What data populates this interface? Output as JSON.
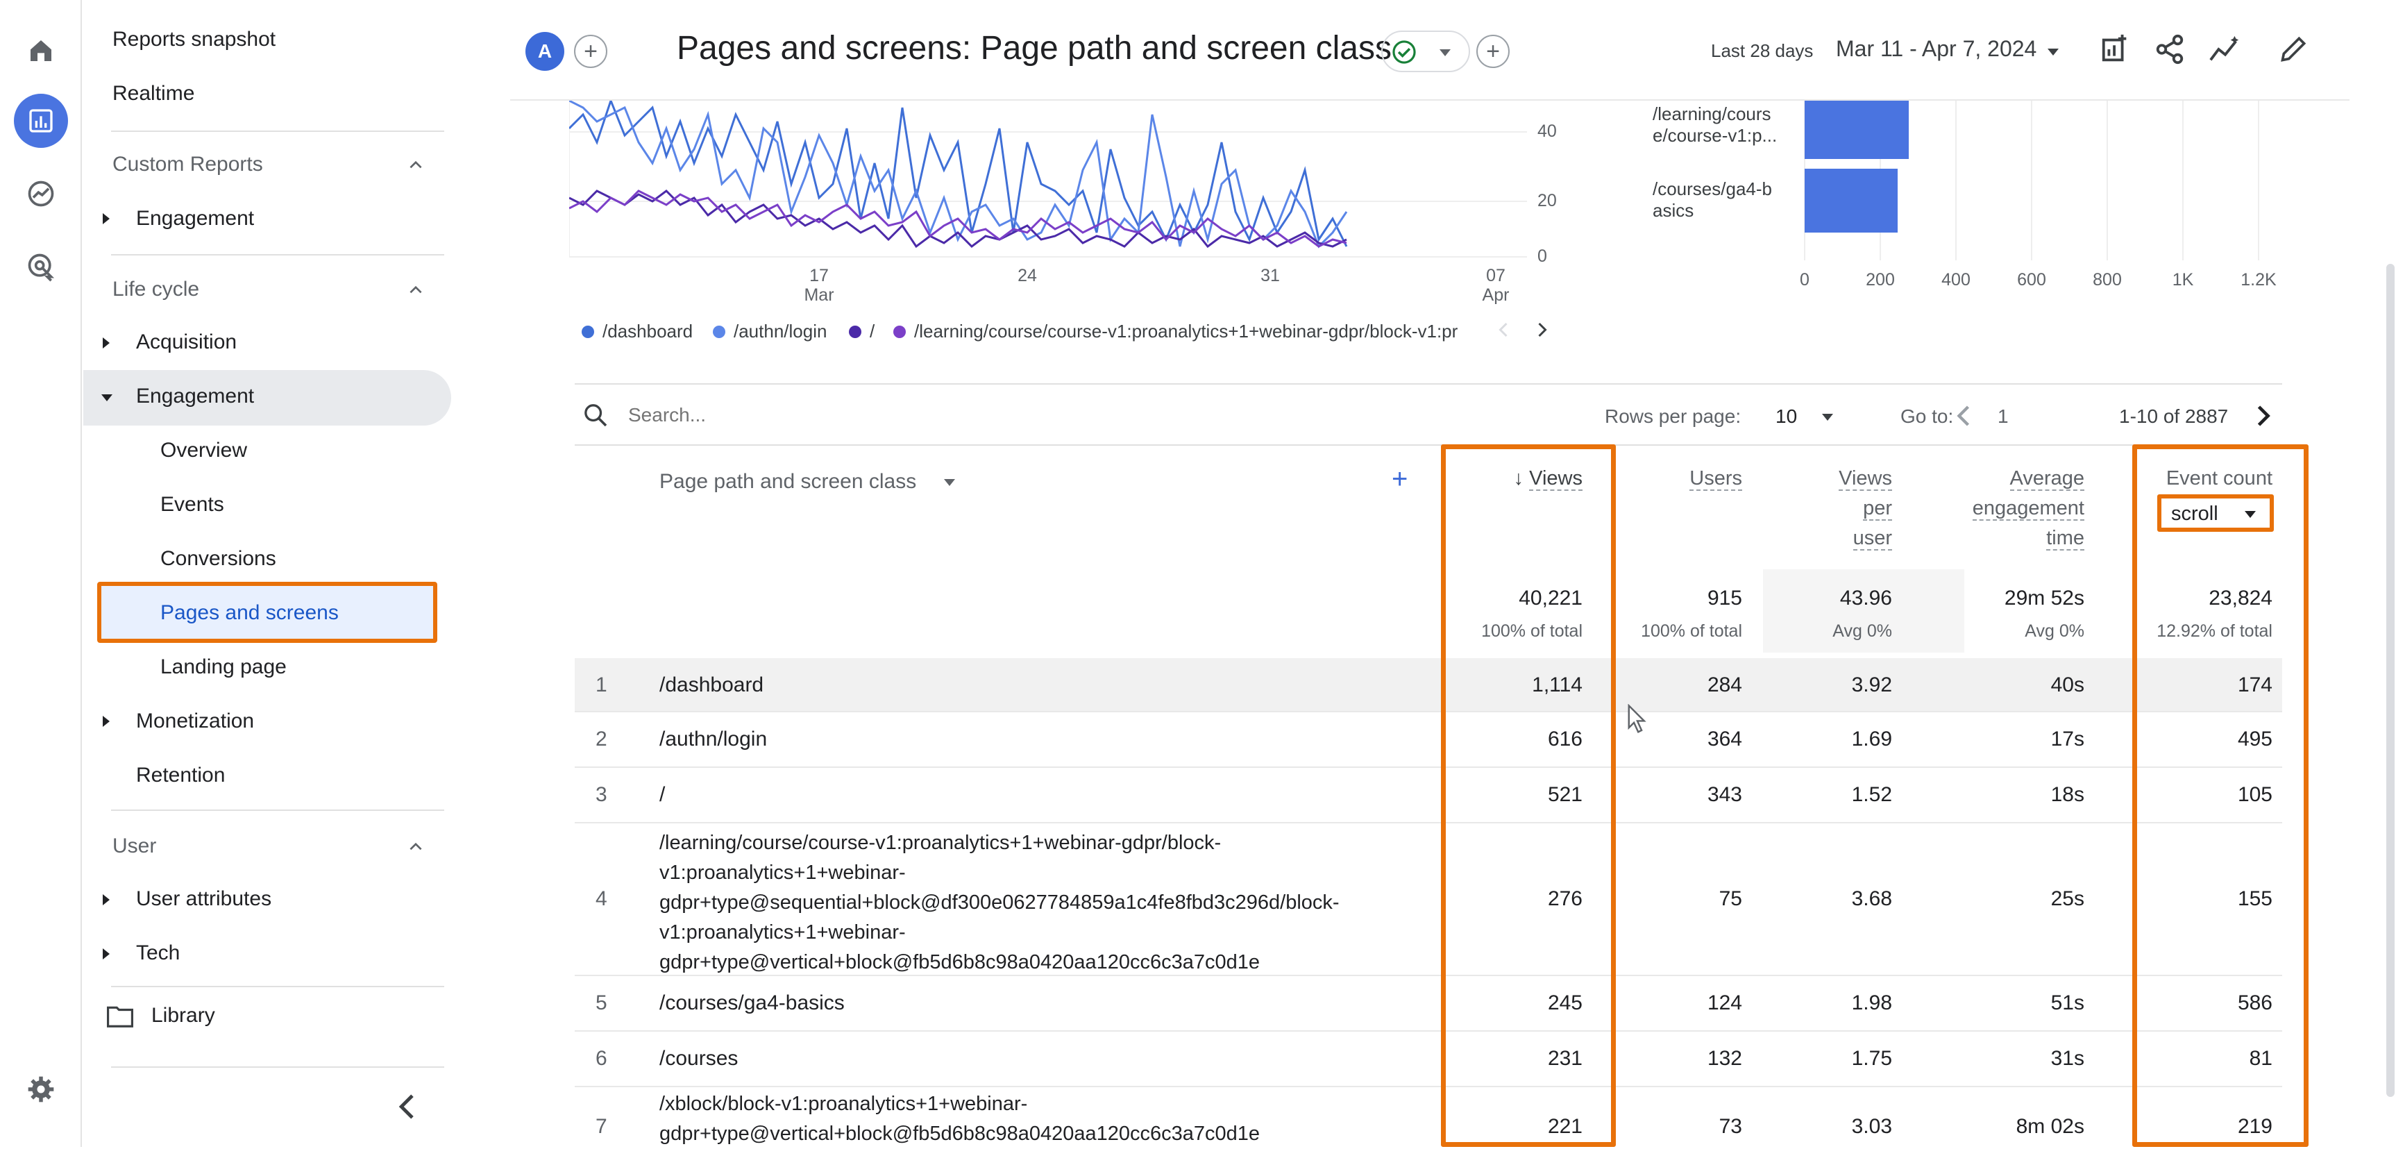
{
  "nav": {
    "top_items": [
      "Reports snapshot",
      "Realtime"
    ],
    "custom_reports": {
      "title": "Custom Reports",
      "items": [
        "Engagement"
      ]
    },
    "life_cycle": {
      "title": "Life cycle",
      "acquisition": "Acquisition",
      "engagement": "Engagement",
      "engagement_children": [
        "Overview",
        "Events",
        "Conversions",
        "Pages and screens",
        "Landing page"
      ],
      "monetization": "Monetization",
      "retention": "Retention"
    },
    "user": {
      "title": "User",
      "items": [
        "User attributes",
        "Tech"
      ]
    },
    "library": "Library"
  },
  "header": {
    "avatar": "A",
    "title": "Pages and screens: Page path and screen class",
    "date_label": "Last 28 days",
    "date_range": "Mar 11 - Apr 7, 2024"
  },
  "line_chart": {
    "y_ticks": [
      "40",
      "20",
      "0"
    ],
    "x_ticks": [
      {
        "day": "17",
        "month": "Mar"
      },
      {
        "day": "24",
        "month": ""
      },
      {
        "day": "31",
        "month": ""
      },
      {
        "day": "07",
        "month": "Apr"
      }
    ],
    "legend": [
      "/dashboard",
      "/authn/login",
      "/",
      "/learning/course/course-v1:proanalytics+1+webinar-gdpr/block-v1:pr"
    ]
  },
  "bar_chart": {
    "labels": [
      [
        "/learning/cours",
        "e/course-v1:p..."
      ],
      [
        "/courses/ga4-b",
        "asics"
      ]
    ],
    "values": [
      276,
      245
    ],
    "x_ticks": [
      "0",
      "200",
      "400",
      "600",
      "800",
      "1K",
      "1.2K"
    ]
  },
  "table": {
    "search_placeholder": "Search...",
    "rows_per_page_label": "Rows per page:",
    "rows_per_page": "10",
    "goto_label": "Go to:",
    "goto_value": "1",
    "range": "1-10 of 2887",
    "dimension_header": "Page path and screen class",
    "headers": {
      "views": "Views",
      "users": "Users",
      "views_per_user": [
        "Views",
        "per",
        "user"
      ],
      "avg_engagement": [
        "Average",
        "engagement",
        "time"
      ],
      "event_count": "Event count",
      "event_filter": "scroll"
    },
    "totals": {
      "views": "40,221",
      "views_sub": "100% of total",
      "users": "915",
      "users_sub": "100% of total",
      "vpu": "43.96",
      "vpu_sub": "Avg 0%",
      "avg": "29m 52s",
      "avg_sub": "Avg 0%",
      "events": "23,824",
      "events_sub": "12.92% of total"
    },
    "rows": [
      {
        "n": "1",
        "path": [
          "/dashboard"
        ],
        "views": "1,114",
        "users": "284",
        "vpu": "3.92",
        "avg": "40s",
        "events": "174"
      },
      {
        "n": "2",
        "path": [
          "/authn/login"
        ],
        "views": "616",
        "users": "364",
        "vpu": "1.69",
        "avg": "17s",
        "events": "495"
      },
      {
        "n": "3",
        "path": [
          "/"
        ],
        "views": "521",
        "users": "343",
        "vpu": "1.52",
        "avg": "18s",
        "events": "105"
      },
      {
        "n": "4",
        "path": [
          "/learning/course/course-v1:proanalytics+1+webinar-gdpr/block-",
          "v1:proanalytics+1+webinar-",
          "gdpr+type@sequential+block@df300e0627784859a1c4fe8fbd3c296d/block-",
          "v1:proanalytics+1+webinar-",
          "gdpr+type@vertical+block@fb5d6b8c98a0420aa120cc6c3a7c0d1e"
        ],
        "views": "276",
        "users": "75",
        "vpu": "3.68",
        "avg": "25s",
        "events": "155"
      },
      {
        "n": "5",
        "path": [
          "/courses/ga4-basics"
        ],
        "views": "245",
        "users": "124",
        "vpu": "1.98",
        "avg": "51s",
        "events": "586"
      },
      {
        "n": "6",
        "path": [
          "/courses"
        ],
        "views": "231",
        "users": "132",
        "vpu": "1.75",
        "avg": "31s",
        "events": "81"
      },
      {
        "n": "7",
        "path": [
          "/xblock/block-v1:proanalytics+1+webinar-",
          "gdpr+type@vertical+block@fb5d6b8c98a0420aa120cc6c3a7c0d1e"
        ],
        "views": "221",
        "users": "73",
        "vpu": "3.03",
        "avg": "8m 02s",
        "events": "219"
      }
    ]
  },
  "colors": {
    "accent": "#4a74e0",
    "highlight": "#e8710a",
    "series": [
      "#3f6fd6",
      "#5b86e8",
      "#4b2aa8",
      "#7b3fc8"
    ]
  }
}
